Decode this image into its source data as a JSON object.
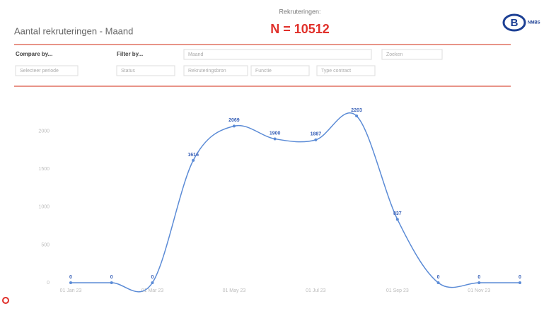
{
  "header": {
    "title": "Aantal rekruteringen - Maand",
    "kpi_label": "Rekruteringen:",
    "kpi_value": "N = 10512",
    "logo_letter": "B",
    "logo_text": "NMBS"
  },
  "filters": {
    "compare_label": "Compare by...",
    "filter_label": "Filter by...",
    "period": "Maand",
    "search": "Zoeken",
    "compare_field": "Selecteer periode",
    "status": "Status",
    "source": "Rekruteringsbron",
    "function": "Functie",
    "contract": "Type contract"
  },
  "chart_data": {
    "type": "line",
    "categories": [
      "01 Jan 23",
      null,
      "01 Mar 23",
      null,
      "01 May 23",
      null,
      "01 Jul 23",
      null,
      "01 Sep 23",
      null,
      "01 Nov 23",
      null
    ],
    "series": [
      {
        "name": "Rekruteringen",
        "color": "#5b8bd6",
        "values": [
          0,
          0,
          0,
          1616,
          2069,
          1900,
          1887,
          2203,
          837,
          0,
          0,
          0
        ]
      }
    ],
    "ylim": [
      0,
      2250
    ],
    "yticks": [
      0,
      500,
      1000,
      1500,
      2000
    ],
    "grid": false
  }
}
